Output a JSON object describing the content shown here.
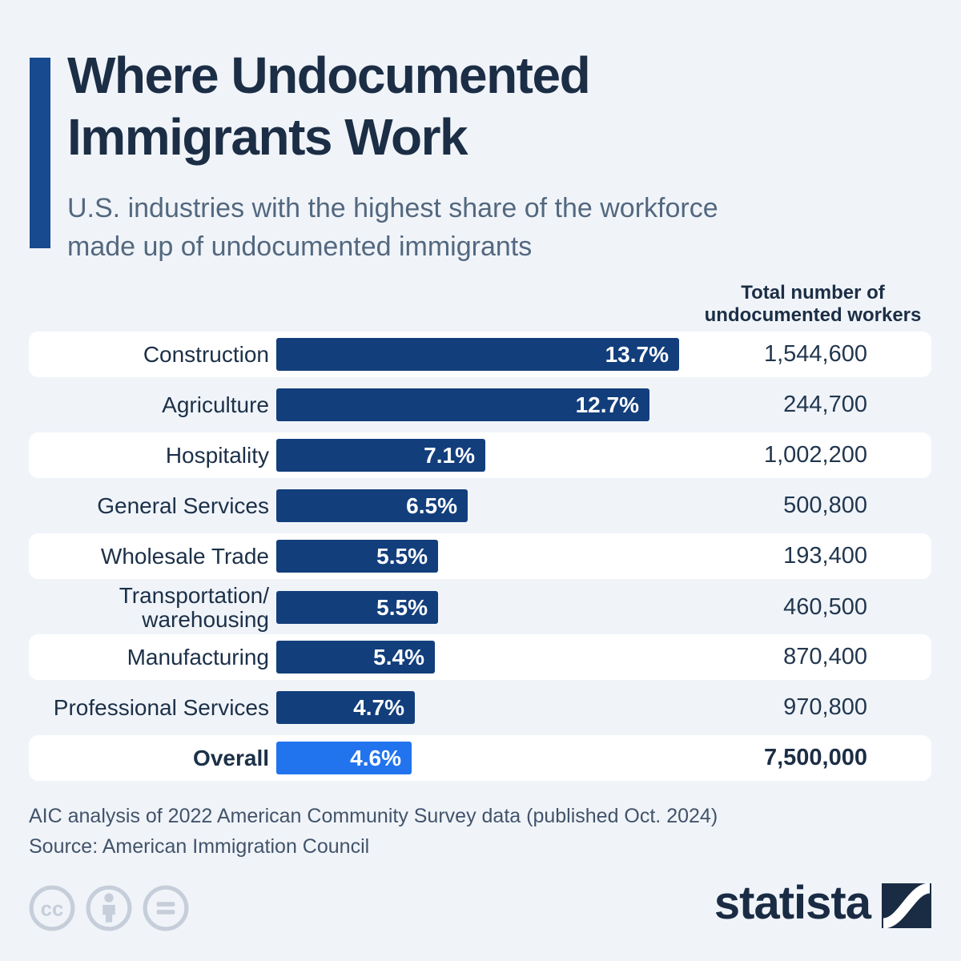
{
  "header": {
    "title_line1": "Where Undocumented",
    "title_line2": "Immigrants Work",
    "subtitle_line1": "U.S. industries with the highest share of the workforce",
    "subtitle_line2": "made up of undocumented immigrants",
    "accent_color": "#174a8e"
  },
  "chart_data": {
    "type": "bar",
    "orientation": "horizontal",
    "title": "Where Undocumented Immigrants Work",
    "subtitle": "U.S. industries with the highest share of the workforce made up of undocumented immigrants",
    "value_column_header": [
      "Total number of",
      "undocumented workers"
    ],
    "unit": "%",
    "max_share_pct": 13.7,
    "bar_color": "#123e7c",
    "highlight_bar_color": "#2173ee",
    "rows": [
      {
        "label_lines": [
          "Construction"
        ],
        "share_pct": 13.7,
        "share_label": "13.7%",
        "total_workers": "1,544,600",
        "bold": false,
        "highlight": false
      },
      {
        "label_lines": [
          "Agriculture"
        ],
        "share_pct": 12.7,
        "share_label": "12.7%",
        "total_workers": "244,700",
        "bold": false,
        "highlight": false
      },
      {
        "label_lines": [
          "Hospitality"
        ],
        "share_pct": 7.1,
        "share_label": "7.1%",
        "total_workers": "1,002,200",
        "bold": false,
        "highlight": false
      },
      {
        "label_lines": [
          "General Services"
        ],
        "share_pct": 6.5,
        "share_label": "6.5%",
        "total_workers": "500,800",
        "bold": false,
        "highlight": false
      },
      {
        "label_lines": [
          "Wholesale Trade"
        ],
        "share_pct": 5.5,
        "share_label": "5.5%",
        "total_workers": "193,400",
        "bold": false,
        "highlight": false
      },
      {
        "label_lines": [
          "Transportation/",
          "warehousing"
        ],
        "share_pct": 5.5,
        "share_label": "5.5%",
        "total_workers": "460,500",
        "bold": false,
        "highlight": false
      },
      {
        "label_lines": [
          "Manufacturing"
        ],
        "share_pct": 5.4,
        "share_label": "5.4%",
        "total_workers": "870,400",
        "bold": false,
        "highlight": false
      },
      {
        "label_lines": [
          "Professional Services"
        ],
        "share_pct": 4.7,
        "share_label": "4.7%",
        "total_workers": "970,800",
        "bold": false,
        "highlight": false
      },
      {
        "label_lines": [
          "Overall"
        ],
        "share_pct": 4.6,
        "share_label": "4.6%",
        "total_workers": "7,500,000",
        "bold": true,
        "highlight": true
      }
    ]
  },
  "footer": {
    "note": "AIC analysis of 2022 American Community Survey data (published Oct. 2024)",
    "source": "Source: American Immigration Council",
    "license_icons": [
      "cc-icon",
      "attribution-icon",
      "equals-icon"
    ],
    "brand": "statista"
  }
}
